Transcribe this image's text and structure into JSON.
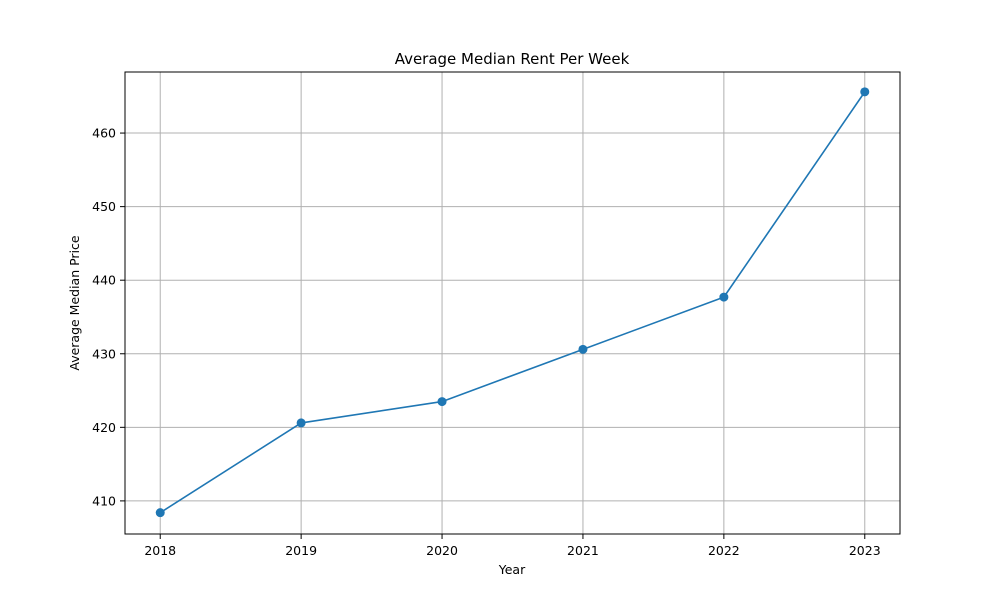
{
  "chart_data": {
    "type": "line",
    "title": "Average Median Rent Per Week",
    "xlabel": "Year",
    "ylabel": "Average Median Price",
    "x": [
      "2018",
      "2019",
      "2020",
      "2021",
      "2022",
      "2023"
    ],
    "series": [
      {
        "values": [
          408.4,
          420.6,
          423.5,
          430.6,
          437.7,
          465.6
        ],
        "color": "#1f77b4",
        "marker": "circle"
      }
    ],
    "yticks": [
      410,
      420,
      430,
      440,
      450,
      460
    ],
    "ylim": [
      405.5,
      468.3
    ],
    "grid": true,
    "colors": {
      "line": "#1f77b4",
      "grid": "#b0b0b0",
      "axes": "#000000"
    }
  }
}
